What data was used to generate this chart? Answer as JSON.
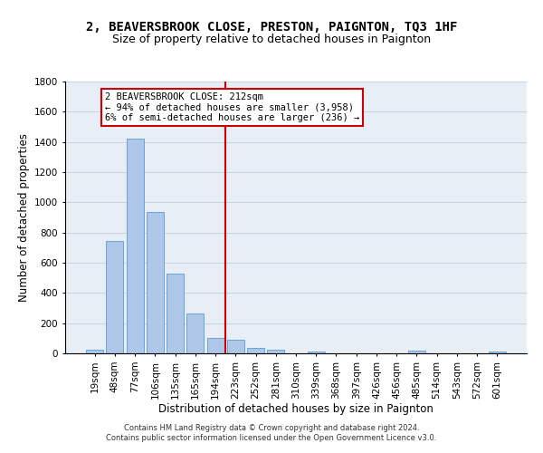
{
  "title": "2, BEAVERSBROOK CLOSE, PRESTON, PAIGNTON, TQ3 1HF",
  "subtitle": "Size of property relative to detached houses in Paignton",
  "xlabel": "Distribution of detached houses by size in Paignton",
  "ylabel": "Number of detached properties",
  "footer_line1": "Contains HM Land Registry data © Crown copyright and database right 2024.",
  "footer_line2": "Contains public sector information licensed under the Open Government Licence v3.0.",
  "categories": [
    "19sqm",
    "48sqm",
    "77sqm",
    "106sqm",
    "135sqm",
    "165sqm",
    "194sqm",
    "223sqm",
    "252sqm",
    "281sqm",
    "310sqm",
    "339sqm",
    "368sqm",
    "397sqm",
    "426sqm",
    "456sqm",
    "485sqm",
    "514sqm",
    "543sqm",
    "572sqm",
    "601sqm"
  ],
  "values": [
    22,
    745,
    1420,
    938,
    530,
    265,
    105,
    92,
    37,
    27,
    0,
    15,
    0,
    0,
    0,
    0,
    18,
    0,
    0,
    0,
    12
  ],
  "bar_color": "#aec6e8",
  "bar_edge_color": "#5b9bd5",
  "vline_x_index": 6.5,
  "vline_color": "#cc0000",
  "annotation_text_line1": "2 BEAVERSBROOK CLOSE: 212sqm",
  "annotation_text_line2": "← 94% of detached houses are smaller (3,958)",
  "annotation_text_line3": "6% of semi-detached houses are larger (236) →",
  "annotation_box_color": "#ffffff",
  "annotation_box_edge_color": "#cc0000",
  "ylim": [
    0,
    1800
  ],
  "yticks": [
    0,
    200,
    400,
    600,
    800,
    1000,
    1200,
    1400,
    1600,
    1800
  ],
  "grid_color": "#c8d4e0",
  "bg_color": "#e8eef5",
  "title_fontsize": 10,
  "subtitle_fontsize": 9,
  "axis_label_fontsize": 8.5,
  "tick_fontsize": 7.5,
  "footer_fontsize": 6,
  "annotation_fontsize": 7.5
}
